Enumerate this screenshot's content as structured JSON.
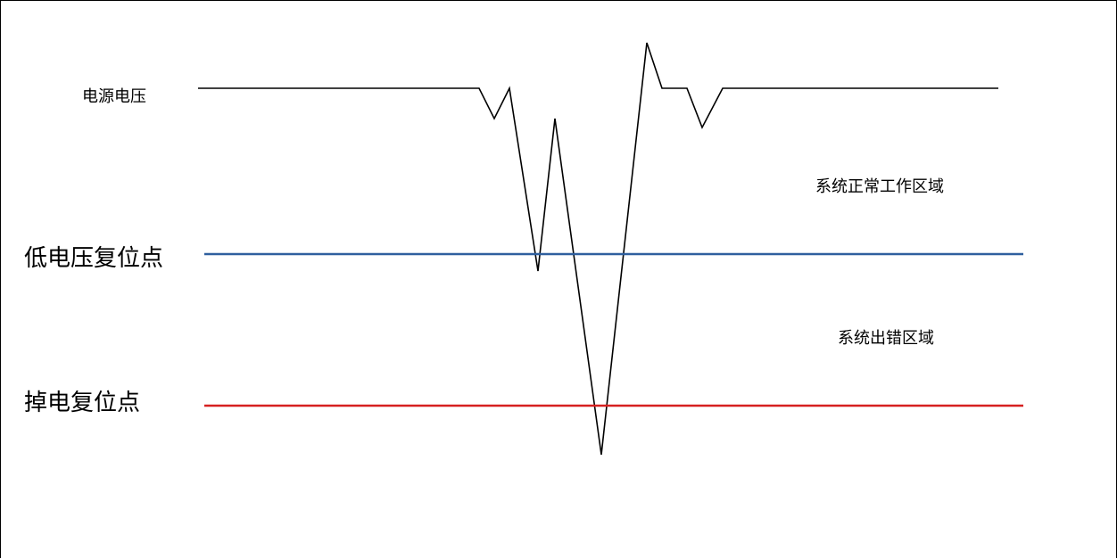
{
  "labels": {
    "supply_voltage": "电源电压",
    "normal_region": "系统正常工作区域",
    "low_voltage_reset": "低电压复位点",
    "error_region": "系统出错区域",
    "power_down_reset": "掉电复位点"
  },
  "colors": {
    "supply_voltage_line": "#000000",
    "low_voltage_reset_line": "#2e5f9e",
    "power_down_reset_line": "#d62020"
  }
}
